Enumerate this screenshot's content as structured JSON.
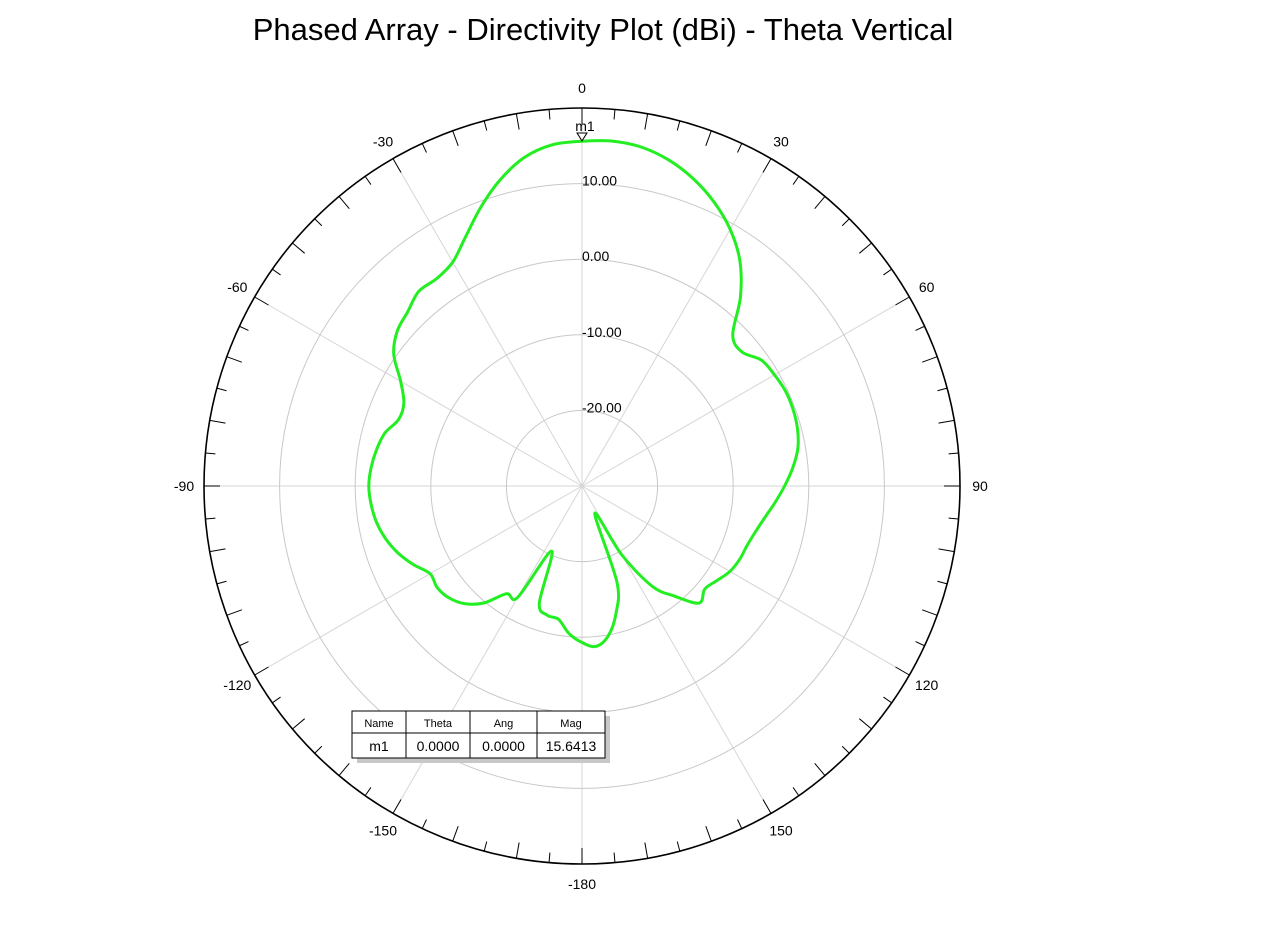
{
  "chart_data": {
    "type": "polar-line",
    "title": "Phased Array - Directivity Plot (dBi) - Theta Vertical",
    "angle_unit": "deg",
    "angle_ticks": [
      0,
      30,
      60,
      90,
      120,
      150,
      -180,
      -150,
      -120,
      -90,
      -60,
      -30
    ],
    "radial_range": [
      -30,
      20
    ],
    "radial_ticks": [
      -20,
      -10,
      0,
      10
    ],
    "radial_tick_labels": [
      "-20.00",
      "-10.00",
      "0.00",
      "10.00"
    ],
    "grid": true,
    "series": [
      {
        "color": "#22ee22",
        "theta": [
          0,
          5,
          10,
          15,
          20,
          25,
          30,
          35,
          40,
          45,
          50,
          55,
          60,
          65,
          70,
          75,
          80,
          85,
          90,
          95,
          100,
          105,
          110,
          115,
          120,
          125,
          130,
          135,
          140,
          145,
          150,
          155,
          160,
          165,
          170,
          175,
          180,
          185,
          190,
          195,
          200,
          205,
          210,
          215,
          220,
          225,
          230,
          235,
          240,
          245,
          250,
          255,
          260,
          265,
          270,
          275,
          280,
          285,
          290,
          295,
          300,
          305,
          310,
          315,
          320,
          325,
          330,
          335,
          340,
          345,
          350,
          355
        ],
        "r": [
          15.6,
          15.8,
          15.5,
          14.6,
          13.2,
          11.4,
          9.2,
          6.4,
          2.6,
          -1.8,
          -2.4,
          -1.0,
          -0.6,
          -0.3,
          -0.3,
          -0.5,
          -1.0,
          -2.0,
          -3.2,
          -4.4,
          -5.5,
          -6.3,
          -6.8,
          -7.0,
          -7.4,
          -8.2,
          -8.8,
          -8.1,
          -11.0,
          -13.8,
          -19.5,
          -26.0,
          -16.5,
          -12.6,
          -9.9,
          -8.7,
          -9.3,
          -10.4,
          -12.1,
          -12.3,
          -13.5,
          -20.5,
          -13.0,
          -12.6,
          -9.8,
          -8.0,
          -7.0,
          -6.6,
          -6.8,
          -5.4,
          -4.1,
          -3.1,
          -2.4,
          -2.0,
          -1.8,
          -2.0,
          -2.4,
          -3.0,
          -4.2,
          -4.0,
          -2.3,
          0.4,
          1.9,
          2.6,
          3.6,
          3.5,
          4.2,
          6.4,
          9.2,
          11.9,
          14.1,
          15.3
        ]
      }
    ],
    "markers": [
      {
        "name": "m1",
        "theta": 0.0,
        "ang": 0.0,
        "mag": 15.6413
      }
    ],
    "marker_table": {
      "headers": [
        "Name",
        "Theta",
        "Ang",
        "Mag"
      ],
      "rows": [
        [
          "m1",
          "0.0000",
          "0.0000",
          "15.6413"
        ]
      ]
    }
  }
}
